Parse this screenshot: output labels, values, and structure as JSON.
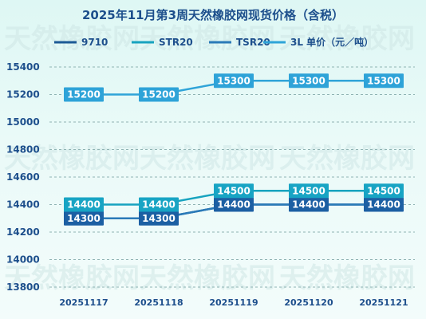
{
  "chart_data": {
    "type": "line",
    "title": "2025年11月第3周天然橡胶网现货价格（含税）",
    "categories": [
      "20251117",
      "20251118",
      "20251119",
      "20251120",
      "20251121"
    ],
    "ylim": [
      13800,
      15400
    ],
    "yticks": [
      13800,
      14000,
      14200,
      14400,
      14600,
      14800,
      15000,
      15200,
      15400
    ],
    "grid": true,
    "legend_position": "top",
    "series": [
      {
        "name": "9710",
        "values": [
          14300,
          14300,
          14400,
          14400,
          14400
        ],
        "color": "#1c5a96",
        "label_color": "#1c5fa3"
      },
      {
        "name": "STR20",
        "values": [
          14400,
          14400,
          14500,
          14500,
          14500
        ],
        "color": "#17a3bf",
        "label_color": "#18a4c4"
      },
      {
        "name": "TSR20",
        "values": [
          14300,
          14300,
          14400,
          14400,
          14400
        ],
        "color": "#2a7ab8",
        "label_color": "#2a7ab8"
      },
      {
        "name": "3L 单价（元／吨）",
        "values": [
          15200,
          15200,
          15300,
          15300,
          15300
        ],
        "color": "#2fa4d8",
        "label_color": "#2ea3d8"
      }
    ],
    "watermark": "天然橡胶网"
  }
}
